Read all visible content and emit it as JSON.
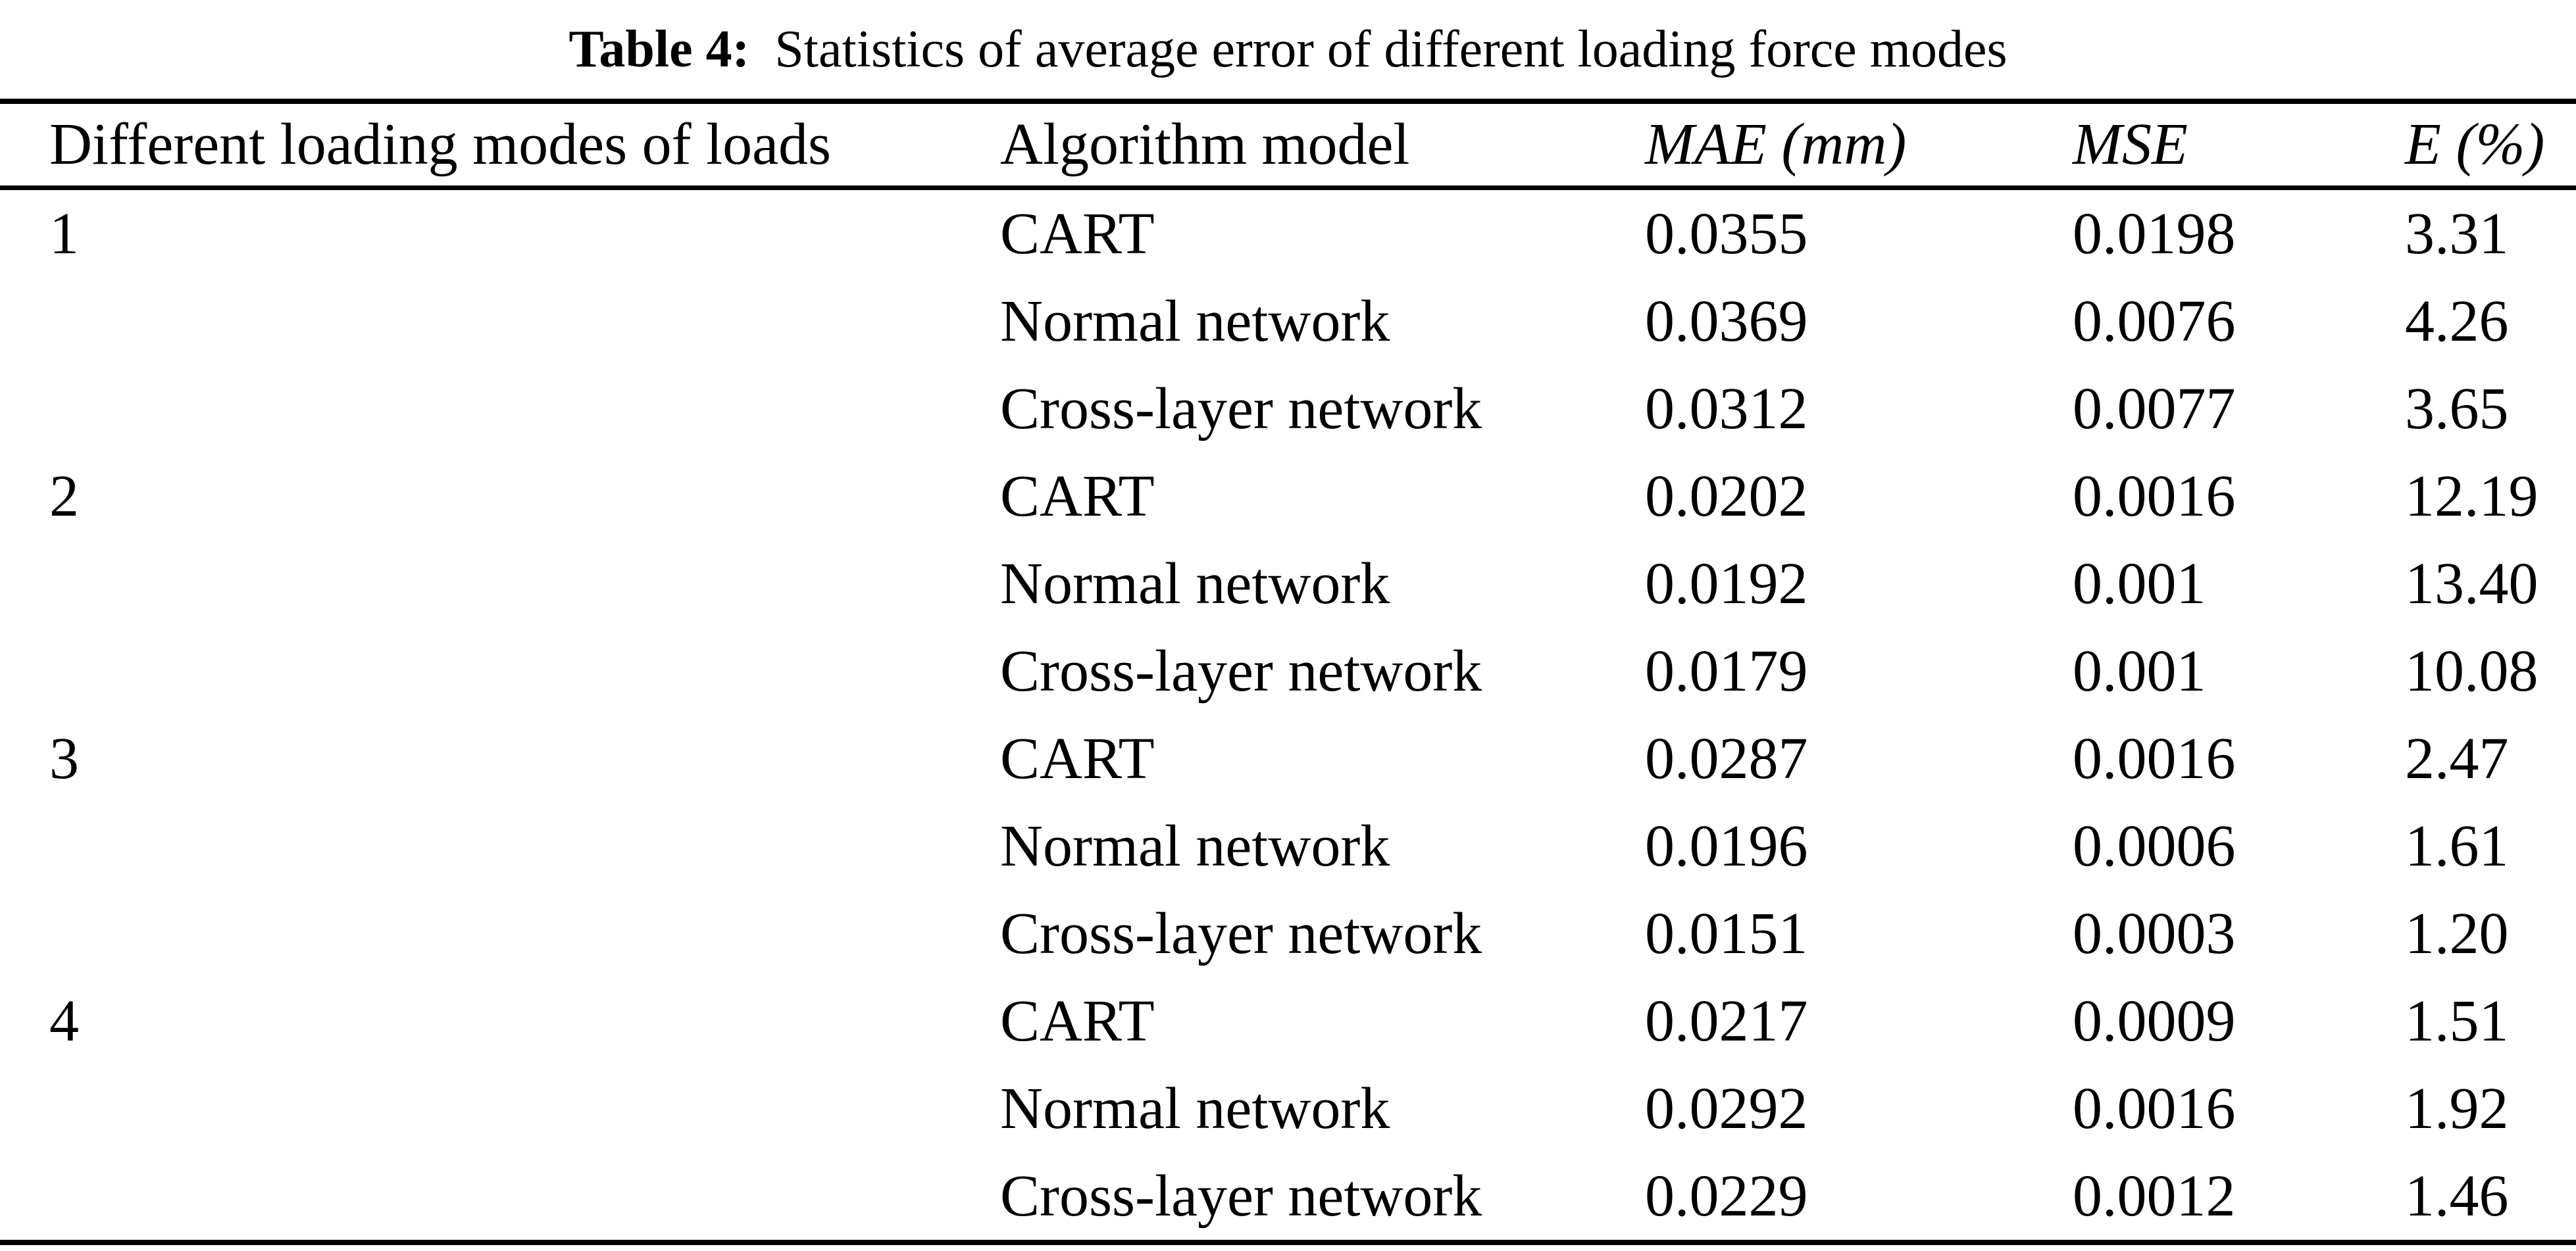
{
  "caption": {
    "label": "Table 4:",
    "text": "Statistics of average error of different loading force modes"
  },
  "table": {
    "headers": {
      "modes": "Different loading modes of loads",
      "model": "Algorithm model",
      "mae": "MAE (mm)",
      "mse": "MSE",
      "e": "E (%)"
    },
    "rows": [
      {
        "mode": "1",
        "model": "CART",
        "mae": "0.0355",
        "mse": "0.0198",
        "e": "3.31"
      },
      {
        "mode": "",
        "model": "Normal network",
        "mae": "0.0369",
        "mse": "0.0076",
        "e": "4.26"
      },
      {
        "mode": "",
        "model": "Cross-layer network",
        "mae": "0.0312",
        "mse": "0.0077",
        "e": "3.65"
      },
      {
        "mode": "2",
        "model": "CART",
        "mae": "0.0202",
        "mse": "0.0016",
        "e": "12.19"
      },
      {
        "mode": "",
        "model": "Normal network",
        "mae": "0.0192",
        "mse": "0.001",
        "e": "13.40"
      },
      {
        "mode": "",
        "model": "Cross-layer network",
        "mae": "0.0179",
        "mse": "0.001",
        "e": "10.08"
      },
      {
        "mode": "3",
        "model": "CART",
        "mae": "0.0287",
        "mse": "0.0016",
        "e": "2.47"
      },
      {
        "mode": "",
        "model": "Normal network",
        "mae": "0.0196",
        "mse": "0.0006",
        "e": "1.61"
      },
      {
        "mode": "",
        "model": "Cross-layer network",
        "mae": "0.0151",
        "mse": "0.0003",
        "e": "1.20"
      },
      {
        "mode": "4",
        "model": "CART",
        "mae": "0.0217",
        "mse": "0.0009",
        "e": "1.51"
      },
      {
        "mode": "",
        "model": "Normal network",
        "mae": "0.0292",
        "mse": "0.0016",
        "e": "1.92"
      },
      {
        "mode": "",
        "model": "Cross-layer network",
        "mae": "0.0229",
        "mse": "0.0012",
        "e": "1.46"
      }
    ]
  },
  "colors": {
    "text": "#000000",
    "background": "#ffffff",
    "rule": "#000000"
  }
}
